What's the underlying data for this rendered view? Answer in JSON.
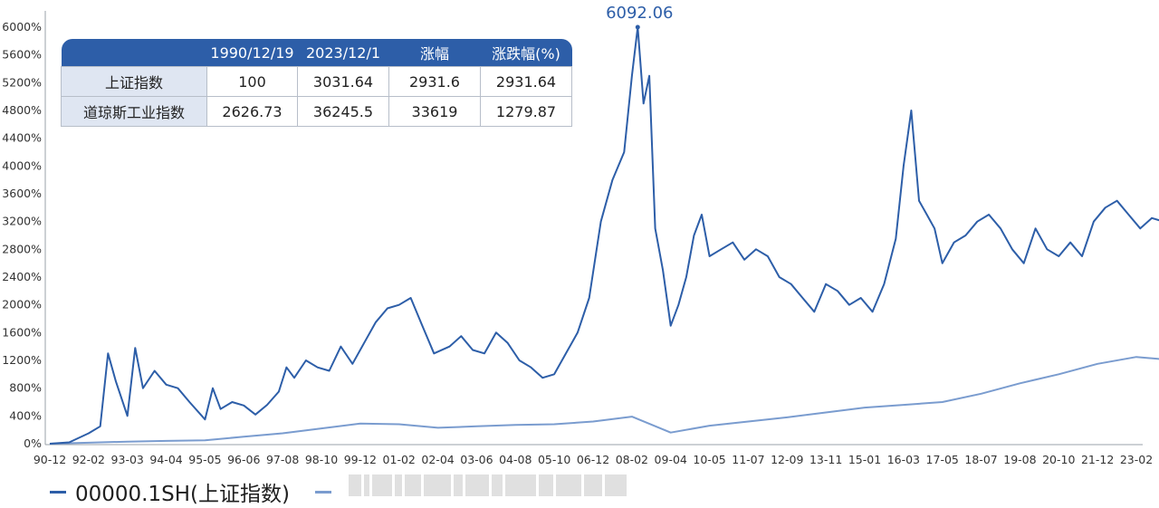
{
  "chart_data": {
    "type": "line",
    "ylim": [
      0,
      6000
    ],
    "y_ticks": [
      "0%",
      "400%",
      "800%",
      "1200%",
      "1600%",
      "2000%",
      "2400%",
      "2800%",
      "3200%",
      "3600%",
      "4000%",
      "4400%",
      "4800%",
      "5200%",
      "5600%",
      "6000%"
    ],
    "x_ticks": [
      "90-12",
      "92-02",
      "93-03",
      "94-04",
      "95-05",
      "96-06",
      "97-08",
      "98-10",
      "99-12",
      "01-02",
      "02-04",
      "03-06",
      "04-08",
      "05-10",
      "06-12",
      "08-02",
      "09-04",
      "10-05",
      "11-07",
      "12-09",
      "13-11",
      "15-01",
      "16-03",
      "17-05",
      "18-07",
      "19-08",
      "20-10",
      "21-12",
      "23-02"
    ],
    "peak_label": "6092.06",
    "series": [
      {
        "name": "00000.1SH(上证指数)",
        "color": "#2d5ea8",
        "points": [
          [
            0,
            0
          ],
          [
            0.5,
            20
          ],
          [
            1,
            150
          ],
          [
            1.3,
            250
          ],
          [
            1.5,
            1300
          ],
          [
            1.7,
            900
          ],
          [
            2,
            400
          ],
          [
            2.2,
            1380
          ],
          [
            2.4,
            800
          ],
          [
            2.7,
            1050
          ],
          [
            3,
            850
          ],
          [
            3.3,
            800
          ],
          [
            3.6,
            600
          ],
          [
            4,
            350
          ],
          [
            4.2,
            800
          ],
          [
            4.4,
            500
          ],
          [
            4.7,
            600
          ],
          [
            5,
            550
          ],
          [
            5.3,
            420
          ],
          [
            5.6,
            560
          ],
          [
            5.9,
            750
          ],
          [
            6.1,
            1100
          ],
          [
            6.3,
            950
          ],
          [
            6.6,
            1200
          ],
          [
            6.9,
            1100
          ],
          [
            7.2,
            1050
          ],
          [
            7.5,
            1400
          ],
          [
            7.8,
            1150
          ],
          [
            8.1,
            1450
          ],
          [
            8.4,
            1750
          ],
          [
            8.7,
            1950
          ],
          [
            9,
            2000
          ],
          [
            9.3,
            2100
          ],
          [
            9.6,
            1700
          ],
          [
            9.9,
            1300
          ],
          [
            10.3,
            1400
          ],
          [
            10.6,
            1550
          ],
          [
            10.9,
            1350
          ],
          [
            11.2,
            1300
          ],
          [
            11.5,
            1600
          ],
          [
            11.8,
            1450
          ],
          [
            12.1,
            1200
          ],
          [
            12.4,
            1100
          ],
          [
            12.7,
            950
          ],
          [
            13,
            1000
          ],
          [
            13.3,
            1300
          ],
          [
            13.6,
            1600
          ],
          [
            13.9,
            2100
          ],
          [
            14.2,
            3200
          ],
          [
            14.5,
            3800
          ],
          [
            14.8,
            4200
          ],
          [
            15,
            5300
          ],
          [
            15.15,
            6000
          ],
          [
            15.3,
            4900
          ],
          [
            15.45,
            5300
          ],
          [
            15.6,
            3100
          ],
          [
            15.8,
            2500
          ],
          [
            16,
            1700
          ],
          [
            16.2,
            2000
          ],
          [
            16.4,
            2400
          ],
          [
            16.6,
            3000
          ],
          [
            16.8,
            3300
          ],
          [
            17,
            2700
          ],
          [
            17.3,
            2800
          ],
          [
            17.6,
            2900
          ],
          [
            17.9,
            2650
          ],
          [
            18.2,
            2800
          ],
          [
            18.5,
            2700
          ],
          [
            18.8,
            2400
          ],
          [
            19.1,
            2300
          ],
          [
            19.4,
            2100
          ],
          [
            19.7,
            1900
          ],
          [
            20,
            2300
          ],
          [
            20.3,
            2200
          ],
          [
            20.6,
            2000
          ],
          [
            20.9,
            2100
          ],
          [
            21.2,
            1900
          ],
          [
            21.5,
            2300
          ],
          [
            21.8,
            2950
          ],
          [
            22,
            4000
          ],
          [
            22.2,
            4800
          ],
          [
            22.4,
            3500
          ],
          [
            22.6,
            3300
          ],
          [
            22.8,
            3100
          ],
          [
            23,
            2600
          ],
          [
            23.3,
            2900
          ],
          [
            23.6,
            3000
          ],
          [
            23.9,
            3200
          ],
          [
            24.2,
            3300
          ],
          [
            24.5,
            3100
          ],
          [
            24.8,
            2800
          ],
          [
            25.1,
            2600
          ],
          [
            25.4,
            3100
          ],
          [
            25.7,
            2800
          ],
          [
            26,
            2700
          ],
          [
            26.3,
            2900
          ],
          [
            26.6,
            2700
          ],
          [
            26.9,
            3200
          ],
          [
            27.2,
            3400
          ],
          [
            27.5,
            3500
          ],
          [
            27.8,
            3300
          ],
          [
            28.1,
            3100
          ],
          [
            28.4,
            3250
          ],
          [
            28.7,
            3200
          ],
          [
            29,
            2950
          ]
        ]
      },
      {
        "name": "",
        "color": "#7a9ccf",
        "points": [
          [
            0,
            0
          ],
          [
            1,
            15
          ],
          [
            2,
            30
          ],
          [
            3,
            40
          ],
          [
            4,
            50
          ],
          [
            5,
            100
          ],
          [
            6,
            150
          ],
          [
            7,
            220
          ],
          [
            8,
            290
          ],
          [
            9,
            280
          ],
          [
            10,
            230
          ],
          [
            11,
            250
          ],
          [
            12,
            270
          ],
          [
            13,
            280
          ],
          [
            14,
            320
          ],
          [
            15,
            390
          ],
          [
            16,
            160
          ],
          [
            17,
            260
          ],
          [
            18,
            320
          ],
          [
            19,
            380
          ],
          [
            20,
            450
          ],
          [
            21,
            520
          ],
          [
            22,
            560
          ],
          [
            23,
            600
          ],
          [
            24,
            720
          ],
          [
            25,
            870
          ],
          [
            26,
            1000
          ],
          [
            27,
            1150
          ],
          [
            28,
            1250
          ],
          [
            29,
            1200
          ]
        ]
      }
    ]
  },
  "table": {
    "headers": [
      "",
      "1990/12/19",
      "2023/12/1",
      "涨幅",
      "涨跌幅(%)"
    ],
    "rows": [
      {
        "name": "上证指数",
        "v1": "100",
        "v2": "3031.64",
        "v3": "2931.6",
        "v4": "2931.64"
      },
      {
        "name": "道琼斯工业指数",
        "v1": "2626.73",
        "v2": "36245.5",
        "v3": "33619",
        "v4": "1279.87"
      }
    ]
  },
  "legend": {
    "item1": "00000.1SH(上证指数)"
  }
}
